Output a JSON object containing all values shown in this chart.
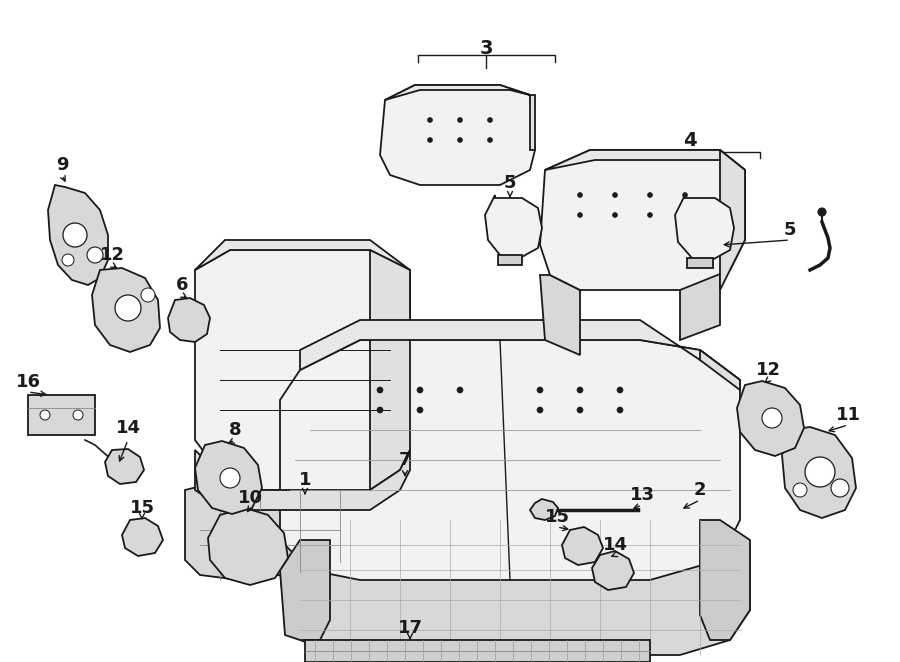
{
  "bg_color": "#ffffff",
  "line_color": "#1a1a1a",
  "fig_width": 9.0,
  "fig_height": 6.62,
  "dpi": 100
}
